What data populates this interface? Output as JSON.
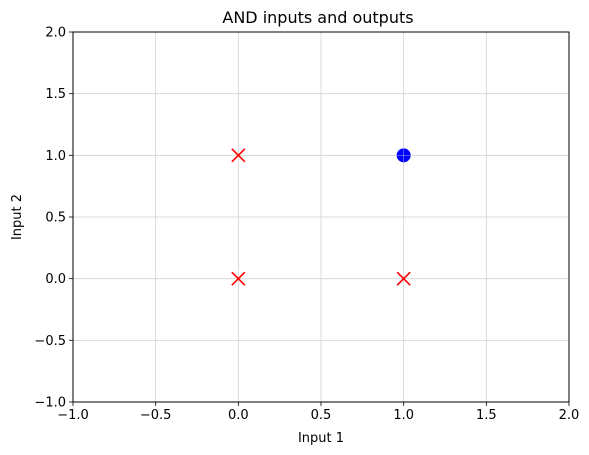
{
  "chart_data": {
    "type": "scatter",
    "title": "AND inputs and outputs",
    "xlabel": "Input 1",
    "ylabel": "Input 2",
    "xlim": [
      -1.0,
      2.0
    ],
    "ylim": [
      -1.0,
      2.0
    ],
    "grid": true,
    "x_ticks": [
      "−1.0",
      "−0.5",
      "0.0",
      "0.5",
      "1.0",
      "1.5",
      "2.0"
    ],
    "y_ticks": [
      "−1.0",
      "−0.5",
      "0.0",
      "0.5",
      "1.0",
      "1.5",
      "2.0"
    ],
    "x_tick_values": [
      -1.0,
      -0.5,
      0.0,
      0.5,
      1.0,
      1.5,
      2.0
    ],
    "y_tick_values": [
      -1.0,
      -0.5,
      0.0,
      0.5,
      1.0,
      1.5,
      2.0
    ],
    "series": [
      {
        "marker": "x",
        "color": "#ff0000",
        "points": [
          {
            "x": 0,
            "y": 0
          },
          {
            "x": 0,
            "y": 1
          },
          {
            "x": 1,
            "y": 0
          }
        ]
      },
      {
        "marker": "circle",
        "color": "#0000ff",
        "points": [
          {
            "x": 1,
            "y": 1
          }
        ]
      }
    ]
  }
}
